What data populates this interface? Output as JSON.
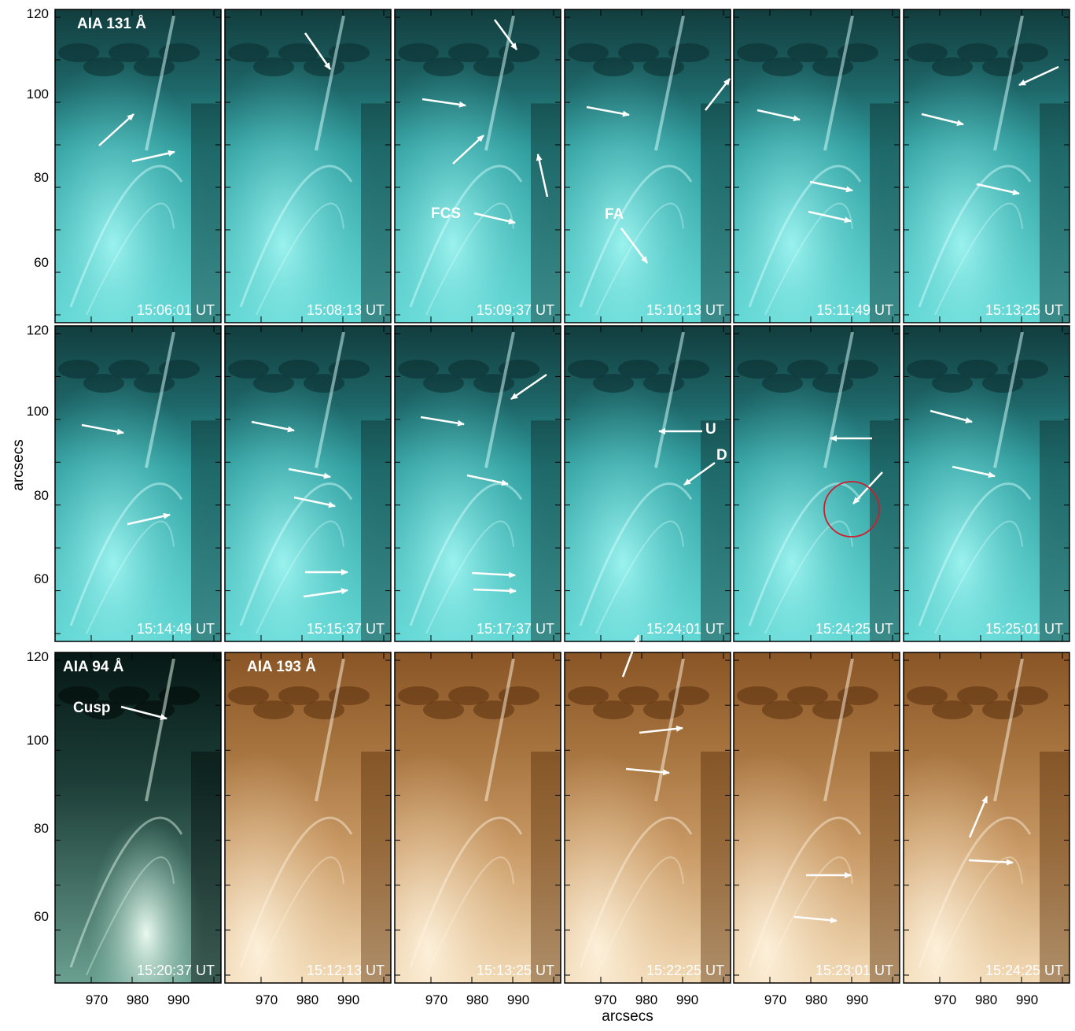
{
  "chart_data": {
    "type": "image-grid",
    "xlabel": "arcsecs",
    "ylabel": "arcsecs",
    "xticks": [
      "970",
      "980",
      "990"
    ],
    "yticks": [
      "120",
      "100",
      "80",
      "60"
    ],
    "xlim": [
      962,
      1001
    ],
    "ylim": [
      45,
      121
    ],
    "rows": [
      {
        "channel_label": "AIA 131 Å",
        "colormap": "cyan",
        "panels": [
          {
            "time": "15:06:01 UT",
            "labels": []
          },
          {
            "time": "15:08:13 UT",
            "labels": []
          },
          {
            "time": "15:09:37 UT",
            "labels": [
              "FCS"
            ]
          },
          {
            "time": "15:10:13 UT",
            "labels": [
              "FA"
            ]
          },
          {
            "time": "15:11:49 UT",
            "labels": []
          },
          {
            "time": "15:13:25 UT",
            "labels": []
          }
        ]
      },
      {
        "channel_label": "",
        "colormap": "cyan",
        "panels": [
          {
            "time": "15:14:49 UT",
            "labels": []
          },
          {
            "time": "15:15:37 UT",
            "labels": []
          },
          {
            "time": "15:17:37 UT",
            "labels": []
          },
          {
            "time": "15:24:01 UT",
            "labels": [
              "U",
              "D"
            ]
          },
          {
            "time": "15:24:25 UT",
            "labels": []
          },
          {
            "time": "15:25:01 UT",
            "labels": []
          }
        ]
      },
      {
        "channel_label": "",
        "colormap": "brown",
        "panels": [
          {
            "time": "15:20:37 UT",
            "channel": "AIA 94 Å",
            "labels": [
              "Cusp"
            ]
          },
          {
            "time": "15:12:13 UT",
            "channel": "AIA 193 Å",
            "labels": []
          },
          {
            "time": "15:13:25 UT",
            "labels": []
          },
          {
            "time": "15:22:25 UT",
            "labels": []
          },
          {
            "time": "15:23:01 UT",
            "labels": []
          },
          {
            "time": "15:24:25 UT",
            "labels": []
          }
        ]
      }
    ],
    "colors": {
      "cyan_dark": "#0c3b3d",
      "cyan_mid": "#2aa2a6",
      "cyan_bright": "#b8ffff",
      "brown_dark": "#6a3a12",
      "brown_mid": "#b98a55",
      "brown_bright": "#fff2d8",
      "green_dark": "#021210",
      "green_mid": "#3f7a6c",
      "green_bright": "#f0fff4",
      "arrow": "#ffffff",
      "circle": "#d01c2c"
    }
  }
}
